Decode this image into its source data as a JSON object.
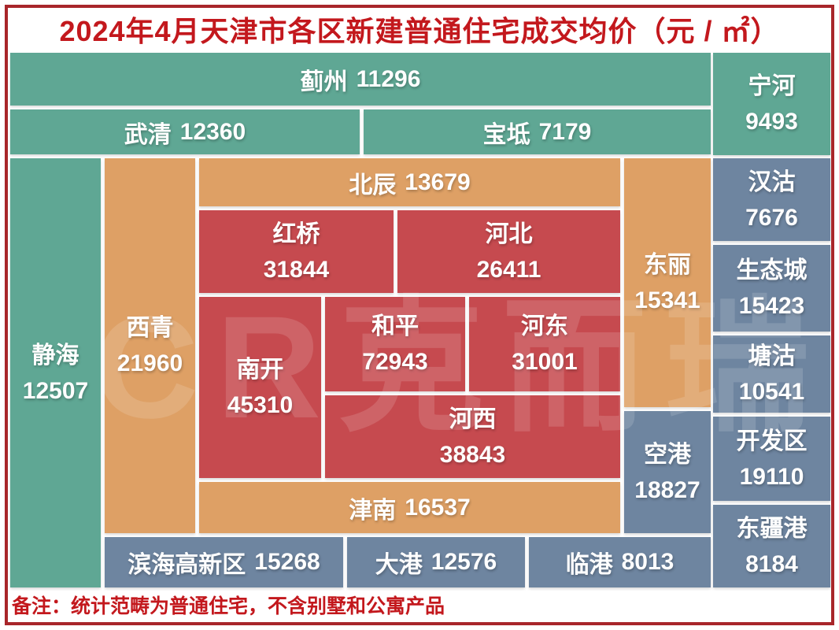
{
  "chart_data": {
    "type": "heatmap",
    "title": "2024年4月天津市各区新建普通住宅成交均价（元 / ㎡）",
    "unit": "元/㎡",
    "layout_hint": "schematic cartogram of Tianjin districts, block color by area group",
    "districts": [
      {
        "name": "蓟州",
        "price": 11296,
        "group": "teal"
      },
      {
        "name": "宁河",
        "price": 9493,
        "group": "teal"
      },
      {
        "name": "武清",
        "price": 12360,
        "group": "teal"
      },
      {
        "name": "宝坻",
        "price": 7179,
        "group": "teal"
      },
      {
        "name": "静海",
        "price": 12507,
        "group": "teal"
      },
      {
        "name": "西青",
        "price": 21960,
        "group": "orange"
      },
      {
        "name": "北辰",
        "price": 13679,
        "group": "orange"
      },
      {
        "name": "红桥",
        "price": 31844,
        "group": "red"
      },
      {
        "name": "河北",
        "price": 26411,
        "group": "red"
      },
      {
        "name": "南开",
        "price": 45310,
        "group": "red"
      },
      {
        "name": "和平",
        "price": 72943,
        "group": "red"
      },
      {
        "name": "河东",
        "price": 31001,
        "group": "red"
      },
      {
        "name": "河西",
        "price": 38843,
        "group": "red"
      },
      {
        "name": "东丽",
        "price": 15341,
        "group": "orange"
      },
      {
        "name": "津南",
        "price": 16537,
        "group": "orange"
      },
      {
        "name": "空港",
        "price": 18827,
        "group": "blue"
      },
      {
        "name": "汉沽",
        "price": 7676,
        "group": "blue"
      },
      {
        "name": "生态城",
        "price": 15423,
        "group": "blue"
      },
      {
        "name": "塘沽",
        "price": 10541,
        "group": "blue"
      },
      {
        "name": "开发区",
        "price": 19110,
        "group": "blue"
      },
      {
        "name": "东疆港",
        "price": 8184,
        "group": "blue"
      },
      {
        "name": "滨海高新区",
        "price": 15268,
        "group": "blue"
      },
      {
        "name": "大港",
        "price": 12576,
        "group": "blue"
      },
      {
        "name": "临港",
        "price": 8013,
        "group": "blue"
      }
    ]
  },
  "note": "备注：统计范畴为普通住宅，不含别墅和公寓产品",
  "watermark": "CR克而瑞",
  "colors": {
    "teal": "#5fa794",
    "orange": "#dea065",
    "red": "#c64a4f",
    "blue": "#6e85a0",
    "accent": "#c3181d",
    "border": "#a8262a"
  }
}
